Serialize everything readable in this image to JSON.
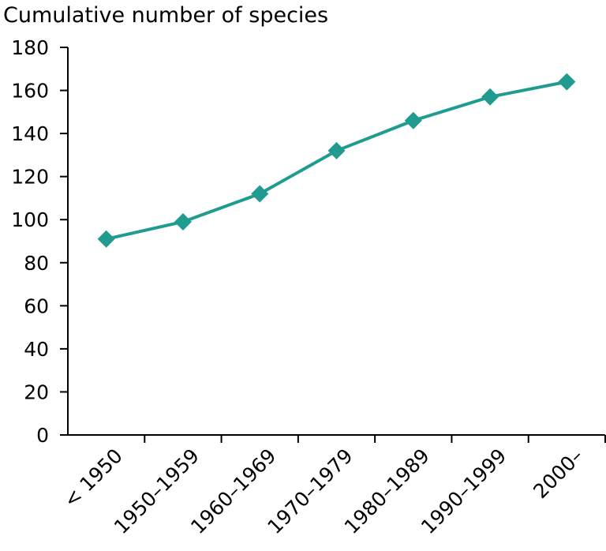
{
  "chart_data": {
    "type": "line",
    "title": "Cumulative number of species",
    "xlabel": "",
    "ylabel": "",
    "categories": [
      "< 1950",
      "1950–1959",
      "1960–1969",
      "1970–1979",
      "1980–1989",
      "1990–1999",
      "2000–"
    ],
    "series": [
      {
        "values": [
          91,
          99,
          112,
          132,
          146,
          157,
          164
        ]
      }
    ],
    "ylim": [
      0,
      180
    ],
    "yticks": [
      0,
      20,
      40,
      60,
      80,
      100,
      120,
      140,
      160,
      180
    ],
    "grid": false,
    "line_color": "#1f9c8f",
    "marker": "diamond"
  }
}
